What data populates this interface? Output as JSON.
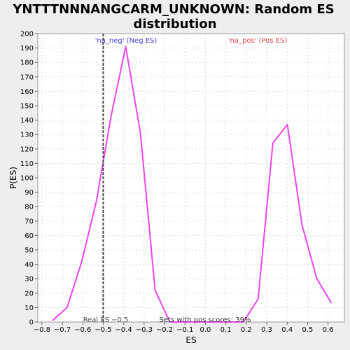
{
  "chart_data": {
    "type": "line",
    "title_line1": "YNTTTNNNANGCARM_UNKNOWN: Random ES",
    "title_line2": "distribution",
    "xlabel": "ES",
    "ylabel": "P(ES)",
    "xlim": [
      -0.82,
      0.68
    ],
    "ylim": [
      0,
      200
    ],
    "xticks": [
      -0.8,
      -0.7,
      -0.6,
      -0.5,
      -0.4,
      -0.3,
      -0.2,
      -0.1,
      0.0,
      0.1,
      0.2,
      0.3,
      0.4,
      0.5,
      0.6
    ],
    "xtick_labels": [
      "−0.8",
      "−0.7",
      "−0.6",
      "−0.5",
      "−0.4",
      "−0.3",
      "−0.2",
      "−0.1",
      "0.0",
      "0.1",
      "0.2",
      "0.3",
      "0.4",
      "0.5",
      "0.6"
    ],
    "yticks": [
      0,
      10,
      20,
      30,
      40,
      50,
      60,
      70,
      80,
      90,
      100,
      110,
      120,
      130,
      140,
      150,
      160,
      170,
      180,
      190,
      200
    ],
    "grid": true,
    "series": [
      {
        "color": "#ee44ee",
        "x": [
          -0.748,
          -0.677,
          -0.605,
          -0.533,
          -0.461,
          -0.39,
          -0.318,
          -0.246,
          -0.174,
          0.186,
          0.258,
          0.33,
          0.401,
          0.473,
          0.545,
          0.617
        ],
        "y": [
          1,
          10,
          42,
          84,
          143,
          191,
          131,
          22,
          0,
          0,
          16,
          124,
          137,
          67,
          30,
          13
        ]
      }
    ],
    "real_es": {
      "x": -0.5,
      "label": "Real ES −0.5",
      "color": "#444444"
    },
    "annotations": {
      "neg_label": "'na_neg' (Neg ES)",
      "neg_color": "#4444cc",
      "pos_label": "'na_pos' (Pos ES)",
      "pos_color": "#dd4444",
      "pos_scores_text": "Sets with pos scores: 39%"
    }
  }
}
